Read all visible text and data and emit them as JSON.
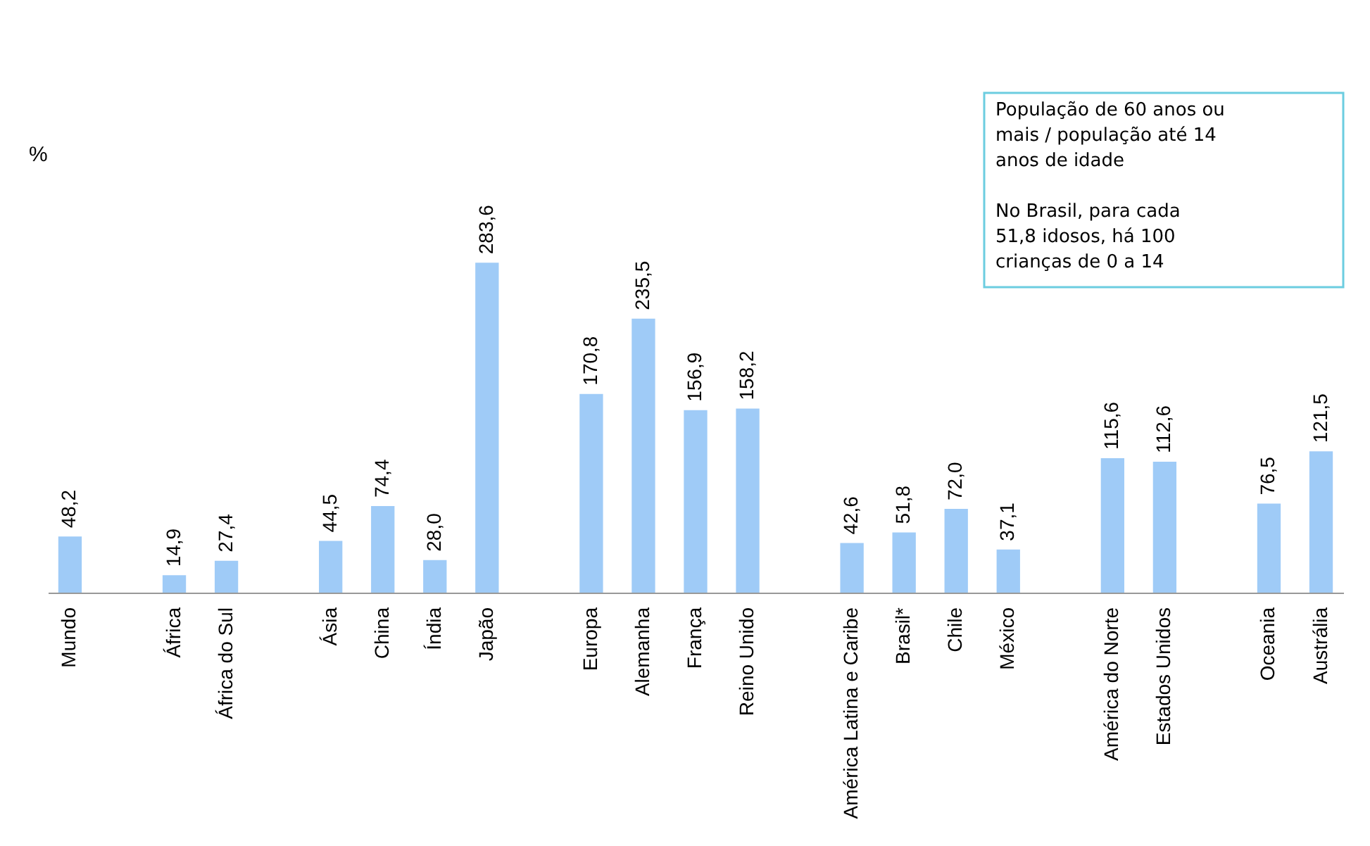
{
  "chart_data": {
    "type": "bar",
    "ylabel": "%",
    "categories": [
      "Mundo",
      null,
      "África",
      "África do Sul",
      null,
      "Ásia",
      "China",
      "Índia",
      "Japão",
      null,
      "Europa",
      "Alemanha",
      "França",
      "Reino Unido",
      null,
      "América Latina e Caribe",
      "Brasil*",
      "Chile",
      "México",
      null,
      "América do Norte",
      "Estados Unidos",
      null,
      "Oceania",
      "Austrália"
    ],
    "values": [
      48.2,
      null,
      14.9,
      27.4,
      null,
      44.5,
      74.4,
      28.0,
      283.6,
      null,
      170.8,
      235.5,
      156.9,
      158.2,
      null,
      42.6,
      51.8,
      72.0,
      37.1,
      null,
      115.6,
      112.6,
      null,
      76.5,
      121.5
    ],
    "value_labels": [
      "48,2",
      null,
      "14,9",
      "27,4",
      null,
      "44,5",
      "74,4",
      "28,0",
      "283,6",
      null,
      "170,8",
      "235,5",
      "156,9",
      "158,2",
      null,
      "42,6",
      "51,8",
      "72,0",
      "37,1",
      null,
      "115,6",
      "112,6",
      null,
      "76,5",
      "121,5"
    ],
    "color": "#9fcbf7",
    "relative": false,
    "annotations": [
      "População de 60 anos ou mais / população até 14 anos de idade",
      "No Brasil, para cada 51,8 idosos, há 100 crianças de 0 a 14"
    ]
  }
}
